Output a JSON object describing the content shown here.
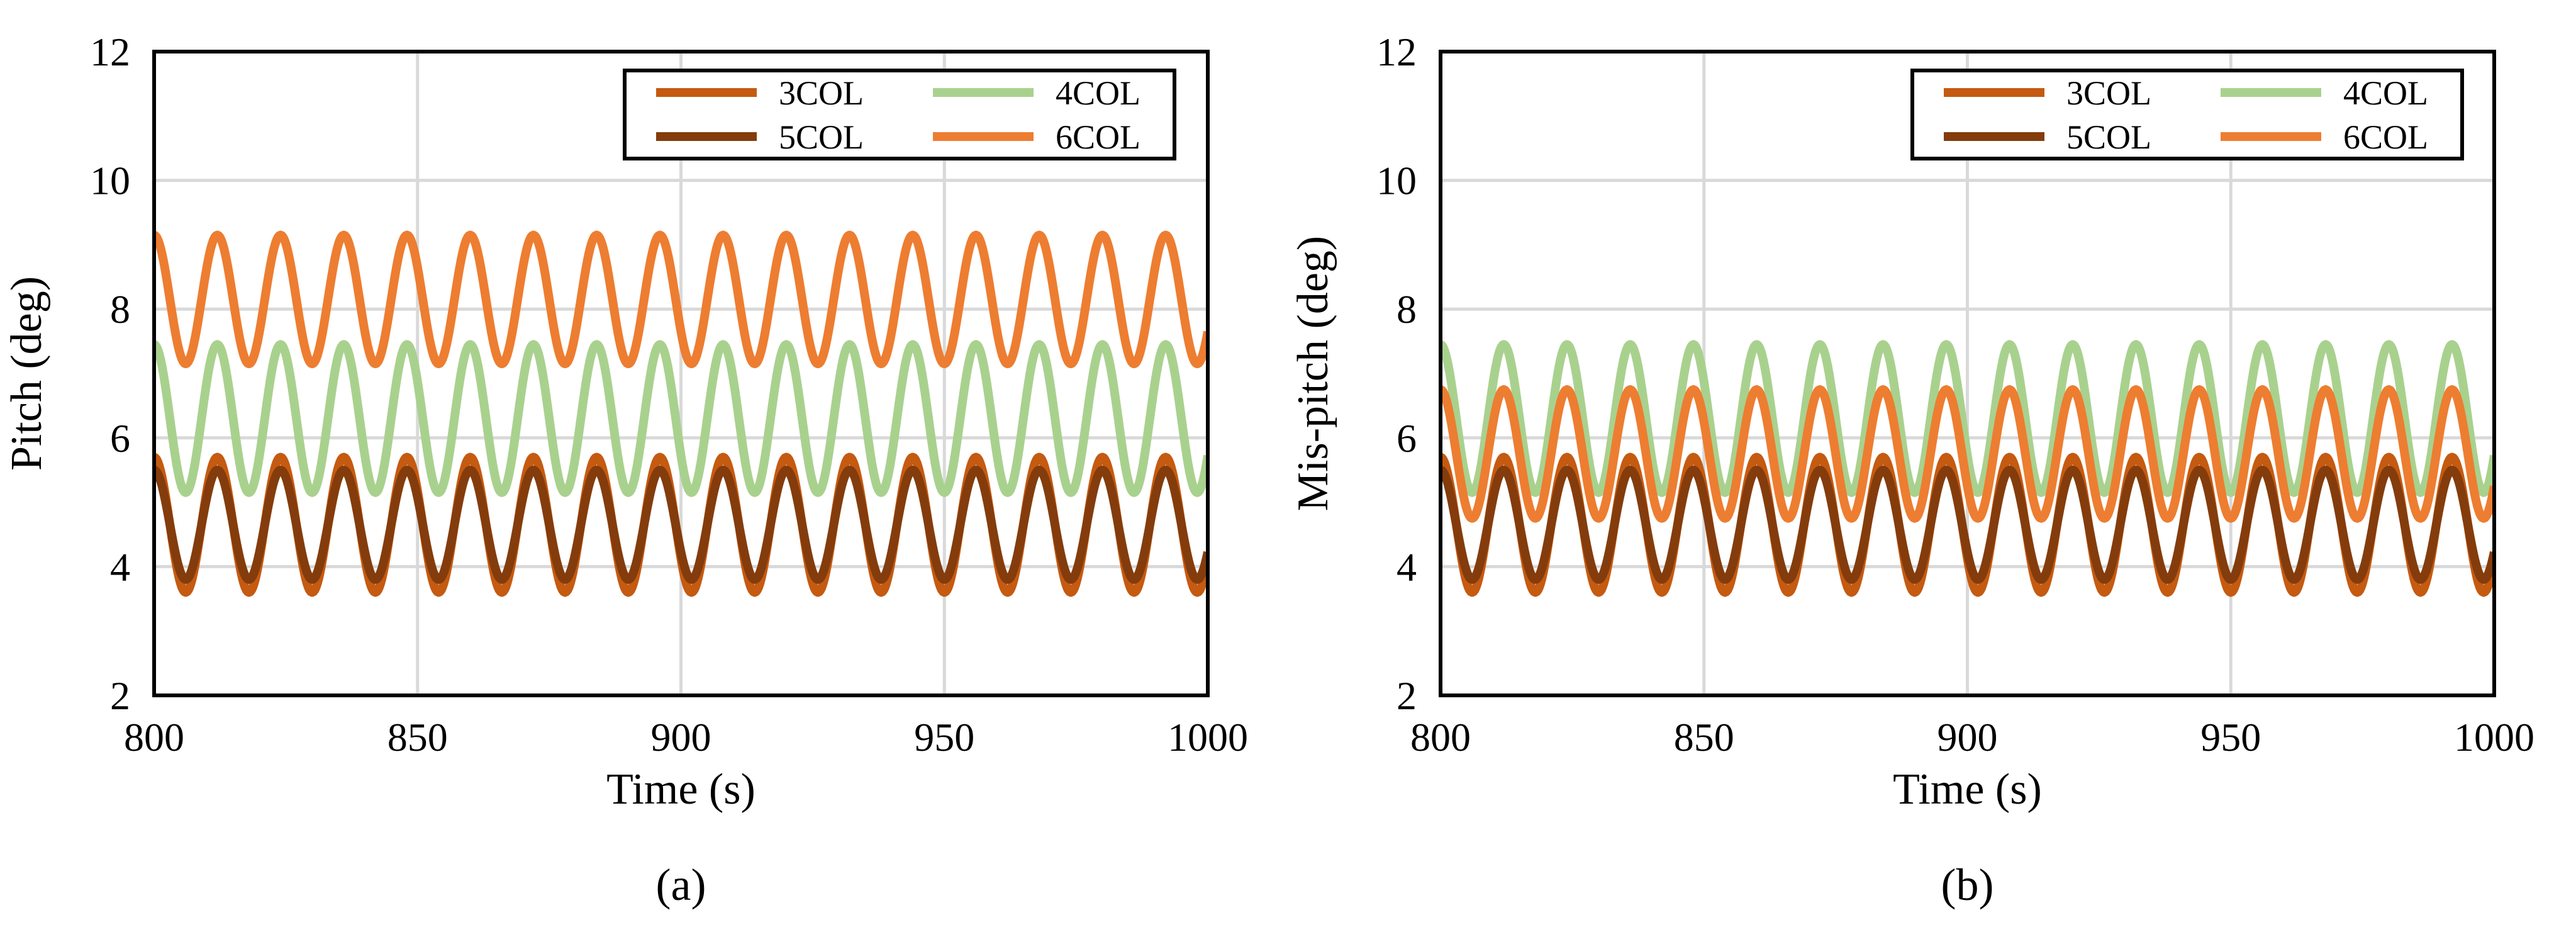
{
  "figure": {
    "captions": [
      "(a)",
      "(b)"
    ]
  },
  "chart_data": [
    {
      "type": "line",
      "panel": "(a)",
      "title": "",
      "xlabel": "Time (s)",
      "ylabel": "Pitch (deg)",
      "xlim": [
        800,
        1000
      ],
      "ylim": [
        2,
        12
      ],
      "xticks": [
        800,
        850,
        900,
        950,
        1000
      ],
      "yticks": [
        2,
        4,
        6,
        8,
        10,
        12
      ],
      "grid": true,
      "legend": {
        "position": "top-right",
        "columns": 2
      },
      "wave_period_s": 12,
      "series": [
        {
          "name": "3COL",
          "color": "#C55A11",
          "mean": 4.65,
          "amplitude": 1.05,
          "phase_start": "max"
        },
        {
          "name": "4COL",
          "color": "#A9D18E",
          "mean": 6.3,
          "amplitude": 1.15,
          "phase_start": "max"
        },
        {
          "name": "5COL",
          "color": "#843C0C",
          "mean": 4.65,
          "amplitude": 0.85,
          "phase_start": "max"
        },
        {
          "name": "6COL",
          "color": "#ED7D31",
          "mean": 8.15,
          "amplitude": 1.0,
          "phase_start": "max"
        }
      ]
    },
    {
      "type": "line",
      "panel": "(b)",
      "title": "",
      "xlabel": "Time (s)",
      "ylabel": "Mis-pitch (deg)",
      "xlim": [
        800,
        1000
      ],
      "ylim": [
        2,
        12
      ],
      "xticks": [
        800,
        850,
        900,
        950,
        1000
      ],
      "yticks": [
        2,
        4,
        6,
        8,
        10,
        12
      ],
      "grid": true,
      "legend": {
        "position": "top-right",
        "columns": 2
      },
      "wave_period_s": 12,
      "series": [
        {
          "name": "3COL",
          "color": "#C55A11",
          "mean": 4.65,
          "amplitude": 1.05,
          "phase_start": "max"
        },
        {
          "name": "4COL",
          "color": "#A9D18E",
          "mean": 6.3,
          "amplitude": 1.15,
          "phase_start": "max"
        },
        {
          "name": "5COL",
          "color": "#843C0C",
          "mean": 4.65,
          "amplitude": 0.85,
          "phase_start": "max"
        },
        {
          "name": "6COL",
          "color": "#ED7D31",
          "mean": 5.75,
          "amplitude": 1.0,
          "phase_start": "max"
        }
      ]
    }
  ]
}
